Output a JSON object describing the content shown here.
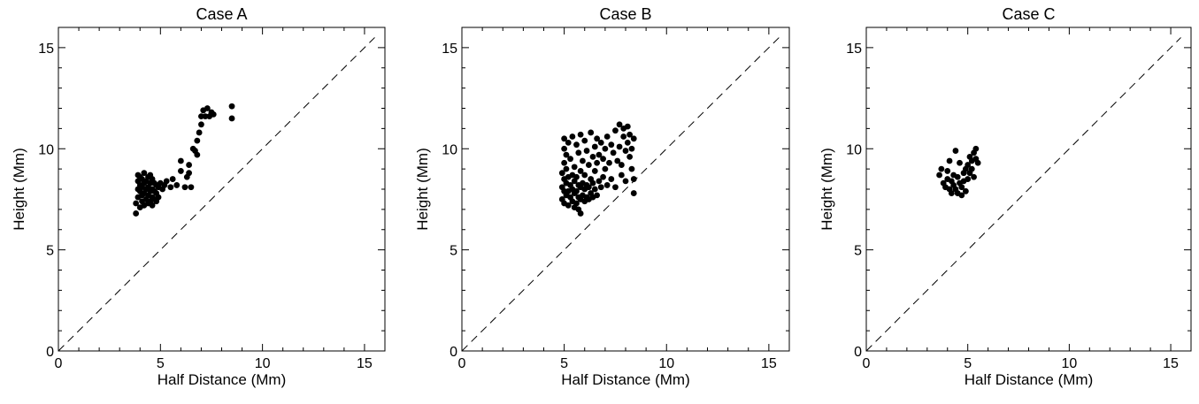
{
  "figure": {
    "background": "#ffffff",
    "ink": "#000000"
  },
  "chart_data": [
    {
      "type": "scatter",
      "title": "Case A",
      "xlabel": "Half Distance (Mm)",
      "ylabel": "Height (Mm)",
      "xlim": [
        0,
        16
      ],
      "ylim": [
        0,
        16
      ],
      "xticks": [
        0,
        5,
        10,
        15
      ],
      "yticks": [
        0,
        5,
        10,
        15
      ],
      "reference_line": "y = x (dashed)",
      "grid": false,
      "series": [
        {
          "points": [
            [
              3.8,
              6.8
            ],
            [
              3.8,
              7.3
            ],
            [
              3.9,
              7.6
            ],
            [
              3.9,
              8.0
            ],
            [
              3.9,
              8.4
            ],
            [
              3.9,
              8.7
            ],
            [
              4.0,
              7.1
            ],
            [
              4.0,
              7.9
            ],
            [
              4.0,
              8.2
            ],
            [
              4.0,
              8.6
            ],
            [
              4.1,
              7.4
            ],
            [
              4.1,
              7.7
            ],
            [
              4.1,
              8.1
            ],
            [
              4.1,
              8.5
            ],
            [
              4.2,
              7.2
            ],
            [
              4.2,
              7.8
            ],
            [
              4.2,
              8.3
            ],
            [
              4.2,
              8.8
            ],
            [
              4.3,
              7.5
            ],
            [
              4.3,
              8.0
            ],
            [
              4.3,
              8.4
            ],
            [
              4.4,
              7.3
            ],
            [
              4.4,
              7.7
            ],
            [
              4.4,
              8.1
            ],
            [
              4.4,
              8.6
            ],
            [
              4.5,
              7.4
            ],
            [
              4.5,
              7.9
            ],
            [
              4.5,
              8.3
            ],
            [
              4.5,
              8.7
            ],
            [
              4.6,
              7.2
            ],
            [
              4.6,
              7.6
            ],
            [
              4.6,
              8.0
            ],
            [
              4.6,
              8.5
            ],
            [
              4.7,
              7.5
            ],
            [
              4.7,
              7.9
            ],
            [
              4.7,
              8.3
            ],
            [
              4.8,
              7.4
            ],
            [
              4.8,
              7.8
            ],
            [
              4.8,
              8.2
            ],
            [
              4.9,
              7.6
            ],
            [
              4.9,
              8.1
            ],
            [
              5.0,
              8.3
            ],
            [
              5.1,
              8.0
            ],
            [
              5.2,
              8.2
            ],
            [
              5.3,
              8.4
            ],
            [
              5.5,
              8.1
            ],
            [
              5.6,
              8.5
            ],
            [
              5.8,
              8.2
            ],
            [
              6.0,
              8.9
            ],
            [
              6.0,
              9.4
            ],
            [
              6.2,
              8.1
            ],
            [
              6.3,
              8.6
            ],
            [
              6.4,
              8.8
            ],
            [
              6.4,
              9.2
            ],
            [
              6.5,
              8.1
            ],
            [
              6.6,
              10.0
            ],
            [
              6.7,
              9.9
            ],
            [
              6.8,
              9.7
            ],
            [
              6.8,
              10.4
            ],
            [
              6.9,
              10.8
            ],
            [
              7.0,
              11.2
            ],
            [
              7.0,
              11.6
            ],
            [
              7.1,
              11.9
            ],
            [
              7.2,
              11.6
            ],
            [
              7.3,
              12.0
            ],
            [
              7.4,
              11.6
            ],
            [
              7.5,
              11.8
            ],
            [
              7.6,
              11.7
            ],
            [
              8.5,
              12.1
            ],
            [
              8.5,
              11.5
            ]
          ]
        }
      ]
    },
    {
      "type": "scatter",
      "title": "Case B",
      "xlabel": "Half Distance (Mm)",
      "ylabel": "Height (Mm)",
      "xlim": [
        0,
        16
      ],
      "ylim": [
        0,
        16
      ],
      "xticks": [
        0,
        5,
        10,
        15
      ],
      "yticks": [
        0,
        5,
        10,
        15
      ],
      "reference_line": "y = x (dashed)",
      "grid": false,
      "series": [
        {
          "points": [
            [
              4.9,
              7.5
            ],
            [
              4.9,
              8.1
            ],
            [
              4.9,
              8.8
            ],
            [
              5.0,
              7.3
            ],
            [
              5.0,
              7.9
            ],
            [
              5.0,
              8.5
            ],
            [
              5.0,
              9.3
            ],
            [
              5.0,
              10.0
            ],
            [
              5.0,
              10.5
            ],
            [
              5.1,
              7.7
            ],
            [
              5.1,
              8.3
            ],
            [
              5.1,
              9.0
            ],
            [
              5.1,
              9.7
            ],
            [
              5.2,
              7.2
            ],
            [
              5.2,
              7.9
            ],
            [
              5.2,
              8.6
            ],
            [
              5.2,
              10.3
            ],
            [
              5.3,
              7.6
            ],
            [
              5.3,
              8.2
            ],
            [
              5.3,
              9.5
            ],
            [
              5.4,
              7.4
            ],
            [
              5.4,
              8.0
            ],
            [
              5.4,
              8.7
            ],
            [
              5.4,
              10.6
            ],
            [
              5.5,
              7.1
            ],
            [
              5.5,
              7.8
            ],
            [
              5.5,
              8.4
            ],
            [
              5.5,
              9.1
            ],
            [
              5.6,
              7.3
            ],
            [
              5.6,
              7.9
            ],
            [
              5.6,
              8.6
            ],
            [
              5.6,
              10.2
            ],
            [
              5.7,
              7.0
            ],
            [
              5.7,
              7.6
            ],
            [
              5.7,
              8.2
            ],
            [
              5.7,
              9.8
            ],
            [
              5.8,
              6.8
            ],
            [
              5.8,
              7.5
            ],
            [
              5.8,
              8.1
            ],
            [
              5.8,
              8.9
            ],
            [
              5.8,
              10.7
            ],
            [
              5.9,
              7.7
            ],
            [
              5.9,
              8.3
            ],
            [
              5.9,
              9.4
            ],
            [
              6.0,
              7.4
            ],
            [
              6.0,
              8.0
            ],
            [
              6.0,
              8.7
            ],
            [
              6.0,
              10.4
            ],
            [
              6.1,
              7.6
            ],
            [
              6.1,
              8.2
            ],
            [
              6.1,
              9.9
            ],
            [
              6.2,
              7.5
            ],
            [
              6.2,
              8.1
            ],
            [
              6.2,
              9.2
            ],
            [
              6.3,
              7.8
            ],
            [
              6.3,
              8.5
            ],
            [
              6.3,
              10.8
            ],
            [
              6.4,
              7.6
            ],
            [
              6.4,
              8.3
            ],
            [
              6.4,
              9.6
            ],
            [
              6.5,
              8.0
            ],
            [
              6.5,
              8.9
            ],
            [
              6.5,
              10.1
            ],
            [
              6.6,
              7.7
            ],
            [
              6.6,
              9.3
            ],
            [
              6.6,
              10.5
            ],
            [
              6.7,
              8.4
            ],
            [
              6.7,
              9.7
            ],
            [
              6.8,
              8.1
            ],
            [
              6.8,
              10.3
            ],
            [
              6.9,
              8.6
            ],
            [
              6.9,
              9.5
            ],
            [
              7.0,
              9.0
            ],
            [
              7.0,
              10.0
            ],
            [
              7.1,
              8.2
            ],
            [
              7.1,
              10.6
            ],
            [
              7.2,
              9.3
            ],
            [
              7.3,
              8.5
            ],
            [
              7.3,
              10.2
            ],
            [
              7.4,
              9.8
            ],
            [
              7.5,
              8.1
            ],
            [
              7.5,
              10.9
            ],
            [
              7.6,
              9.4
            ],
            [
              7.7,
              11.2
            ],
            [
              7.7,
              10.1
            ],
            [
              7.8,
              8.7
            ],
            [
              7.8,
              9.2
            ],
            [
              7.9,
              10.6
            ],
            [
              7.9,
              11.0
            ],
            [
              8.0,
              9.9
            ],
            [
              8.0,
              8.4
            ],
            [
              8.1,
              10.3
            ],
            [
              8.1,
              11.1
            ],
            [
              8.2,
              9.6
            ],
            [
              8.2,
              10.7
            ],
            [
              8.3,
              9.0
            ],
            [
              8.3,
              10.0
            ],
            [
              8.4,
              7.8
            ],
            [
              8.4,
              8.5
            ],
            [
              8.4,
              10.5
            ]
          ]
        }
      ]
    },
    {
      "type": "scatter",
      "title": "Case C",
      "xlabel": "Half Distance (Mm)",
      "ylabel": "Height (Mm)",
      "xlim": [
        0,
        16
      ],
      "ylim": [
        0,
        16
      ],
      "xticks": [
        0,
        5,
        10,
        15
      ],
      "yticks": [
        0,
        5,
        10,
        15
      ],
      "reference_line": "y = x (dashed)",
      "grid": false,
      "series": [
        {
          "points": [
            [
              3.6,
              8.7
            ],
            [
              3.7,
              9.0
            ],
            [
              3.8,
              8.3
            ],
            [
              3.9,
              8.1
            ],
            [
              4.0,
              8.5
            ],
            [
              4.0,
              8.9
            ],
            [
              4.1,
              8.0
            ],
            [
              4.1,
              9.4
            ],
            [
              4.2,
              7.8
            ],
            [
              4.2,
              8.4
            ],
            [
              4.3,
              8.7
            ],
            [
              4.3,
              8.2
            ],
            [
              4.4,
              9.9
            ],
            [
              4.4,
              8.0
            ],
            [
              4.5,
              7.8
            ],
            [
              4.5,
              8.6
            ],
            [
              4.6,
              8.3
            ],
            [
              4.6,
              9.3
            ],
            [
              4.7,
              7.7
            ],
            [
              4.7,
              8.1
            ],
            [
              4.8,
              8.8
            ],
            [
              4.8,
              8.4
            ],
            [
              4.9,
              9.0
            ],
            [
              4.9,
              7.9
            ],
            [
              5.0,
              8.5
            ],
            [
              5.0,
              9.2
            ],
            [
              5.1,
              8.8
            ],
            [
              5.1,
              9.6
            ],
            [
              5.2,
              9.0
            ],
            [
              5.2,
              9.4
            ],
            [
              5.3,
              8.6
            ],
            [
              5.3,
              9.8
            ],
            [
              5.4,
              9.5
            ],
            [
              5.4,
              10.0
            ],
            [
              5.5,
              9.3
            ]
          ]
        }
      ]
    }
  ]
}
